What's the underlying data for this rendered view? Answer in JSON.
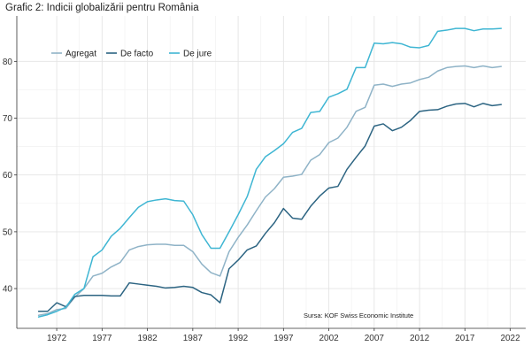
{
  "chart_data": {
    "type": "line",
    "title": "Grafic 2: Indicii globalizării pentru România",
    "xlabel": "",
    "ylabel": "",
    "source": "Sursa: KOF Swiss Economic Institute",
    "xlim": [
      1967.6,
      2023.7
    ],
    "ylim": [
      33.0,
      88.0
    ],
    "xticks": [
      1972,
      1977,
      1982,
      1987,
      1992,
      1997,
      2002,
      2007,
      2012,
      2017,
      2022
    ],
    "yticks": [
      40,
      50,
      60,
      70,
      80
    ],
    "grid": true,
    "legend_position": "top-left",
    "x": [
      1970,
      1971,
      1972,
      1973,
      1974,
      1975,
      1976,
      1977,
      1978,
      1979,
      1980,
      1981,
      1982,
      1983,
      1984,
      1985,
      1986,
      1987,
      1988,
      1989,
      1990,
      1991,
      1992,
      1993,
      1994,
      1995,
      1996,
      1997,
      1998,
      1999,
      2000,
      2001,
      2002,
      2003,
      2004,
      2005,
      2006,
      2007,
      2008,
      2009,
      2010,
      2011,
      2012,
      2013,
      2014,
      2015,
      2016,
      2017,
      2018,
      2019,
      2020,
      2021
    ],
    "series": [
      {
        "name": "Agregat",
        "color": "#8fb3c7",
        "values": [
          35.3,
          35.6,
          36.3,
          36.5,
          38.5,
          40.0,
          42.2,
          42.7,
          43.8,
          44.6,
          46.8,
          47.4,
          47.7,
          47.8,
          47.8,
          47.6,
          47.6,
          46.5,
          44.3,
          42.8,
          42.2,
          46.5,
          49.0,
          51.2,
          53.7,
          56.1,
          57.6,
          59.6,
          59.8,
          60.1,
          62.6,
          63.6,
          65.7,
          66.5,
          68.4,
          71.2,
          71.9,
          75.8,
          76.0,
          75.6,
          76.0,
          76.2,
          76.8,
          77.2,
          78.3,
          78.9,
          79.1,
          79.2,
          78.9,
          79.2,
          78.9,
          79.1
        ]
      },
      {
        "name": "De facto",
        "color": "#2c6482",
        "values": [
          36.0,
          36.0,
          37.5,
          36.8,
          38.6,
          38.8,
          38.8,
          38.8,
          38.7,
          38.7,
          41.0,
          40.8,
          40.6,
          40.4,
          40.1,
          40.2,
          40.4,
          40.2,
          39.3,
          38.9,
          37.5,
          43.5,
          45.0,
          46.8,
          47.5,
          49.7,
          51.6,
          54.1,
          52.4,
          52.2,
          54.5,
          56.3,
          57.7,
          58.0,
          61.0,
          63.1,
          65.1,
          68.6,
          69.0,
          67.8,
          68.4,
          69.6,
          71.2,
          71.4,
          71.5,
          72.1,
          72.5,
          72.6,
          72.0,
          72.6,
          72.2,
          72.4
        ]
      },
      {
        "name": "De jure",
        "color": "#3fb6d3",
        "values": [
          35.0,
          35.4,
          36.0,
          36.7,
          39.0,
          40.0,
          45.6,
          46.8,
          49.2,
          50.6,
          52.5,
          54.3,
          55.3,
          55.6,
          55.8,
          55.5,
          55.4,
          53.0,
          49.5,
          47.1,
          47.1,
          50.0,
          53.0,
          56.2,
          61.0,
          63.2,
          64.3,
          65.5,
          67.5,
          68.2,
          71.0,
          71.2,
          73.7,
          74.3,
          75.1,
          78.9,
          78.9,
          83.2,
          83.1,
          83.3,
          83.1,
          82.5,
          82.4,
          82.8,
          85.3,
          85.5,
          85.8,
          85.8,
          85.4,
          85.7,
          85.7,
          85.8
        ]
      }
    ]
  }
}
